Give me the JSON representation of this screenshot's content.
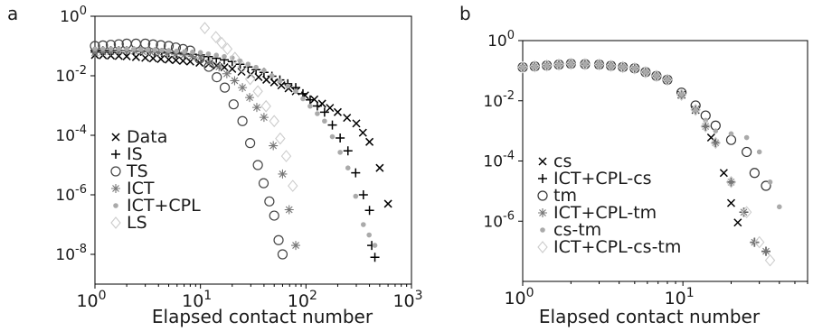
{
  "chart_data": [
    {
      "panel_label": "a",
      "type": "scatter",
      "title": "",
      "xlabel": "Elapsed contact number",
      "ylabel": "",
      "xscale": "log",
      "yscale": "log",
      "xlim": [
        1,
        1000
      ],
      "ylim": [
        1e-09,
        1
      ],
      "x_ticks": [
        {
          "base": "10",
          "exp": "0"
        },
        {
          "base": "10",
          "exp": "1"
        },
        {
          "base": "10",
          "exp": "2"
        },
        {
          "base": "10",
          "exp": "3"
        }
      ],
      "y_ticks": [
        {
          "base": "10",
          "exp": "0",
          "value": 1
        },
        {
          "base": "10",
          "exp": "-2",
          "value": 0.01
        },
        {
          "base": "10",
          "exp": "-4",
          "value": 0.0001
        },
        {
          "base": "10",
          "exp": "-6",
          "value": 1e-06
        },
        {
          "base": "10",
          "exp": "-8",
          "value": 1e-08
        }
      ],
      "legend_position": "left",
      "series": [
        {
          "name": "Data",
          "marker": "x",
          "color": "#000000",
          "x": [
            1,
            2,
            3,
            5,
            8,
            12,
            20,
            30,
            50,
            80,
            120,
            200,
            300,
            400,
            500,
            600
          ],
          "y": [
            0.05,
            0.045,
            0.04,
            0.035,
            0.03,
            0.025,
            0.017,
            0.011,
            0.006,
            0.003,
            0.0016,
            0.0006,
            0.00025,
            6e-05,
            8e-06,
            5e-07
          ]
        },
        {
          "name": "IS",
          "marker": "+",
          "color": "#000000",
          "x": [
            1,
            2,
            5,
            10,
            20,
            40,
            80,
            150,
            250,
            350,
            400,
            420,
            450
          ],
          "y": [
            0.07,
            0.07,
            0.06,
            0.05,
            0.03,
            0.013,
            0.004,
            0.0006,
            3e-05,
            1e-06,
            3e-07,
            2e-08,
            8e-09
          ]
        },
        {
          "name": "TS",
          "marker": "o",
          "color": "#444444",
          "x": [
            1,
            2,
            3,
            5,
            8,
            12,
            17,
            25,
            35,
            45,
            50,
            55,
            60
          ],
          "y": [
            0.1,
            0.12,
            0.12,
            0.1,
            0.07,
            0.02,
            0.004,
            0.0003,
            1e-05,
            6e-07,
            2e-07,
            3e-08,
            1e-08
          ]
        },
        {
          "name": "ICT",
          "marker": "*",
          "color": "#777777",
          "x": [
            1,
            2,
            4,
            7,
            10,
            15,
            25,
            40,
            60,
            80
          ],
          "y": [
            0.06,
            0.07,
            0.06,
            0.05,
            0.04,
            0.02,
            0.004,
            0.0004,
            5e-06,
            2e-08
          ]
        },
        {
          "name": "ICT+CPL",
          "marker": "dot",
          "color": "#aaaaaa",
          "x": [
            1,
            2,
            5,
            10,
            20,
            40,
            80,
            150,
            250,
            350,
            450
          ],
          "y": [
            0.08,
            0.08,
            0.07,
            0.06,
            0.04,
            0.015,
            0.003,
            0.0003,
            8e-06,
            1e-07,
            2e-08
          ]
        },
        {
          "name": "LS",
          "marker": "diamond",
          "color": "#cccccc",
          "x": [
            11,
            14,
            18,
            25,
            35,
            50,
            65,
            75
          ],
          "y": [
            0.4,
            0.2,
            0.08,
            0.02,
            0.003,
            0.0003,
            2e-05,
            2e-06
          ]
        }
      ]
    },
    {
      "panel_label": "b",
      "type": "scatter",
      "title": "",
      "xlabel": "Elapsed contact number",
      "ylabel": "",
      "xscale": "log",
      "yscale": "log",
      "xlim": [
        1,
        60
      ],
      "ylim": [
        1e-08,
        1
      ],
      "x_ticks": [
        {
          "base": "10",
          "exp": "0"
        },
        {
          "base": "10",
          "exp": "1"
        }
      ],
      "y_ticks": [
        {
          "base": "10",
          "exp": "0",
          "value": 1
        },
        {
          "base": "10",
          "exp": "-2",
          "value": 0.01
        },
        {
          "base": "10",
          "exp": "-4",
          "value": 0.0001
        },
        {
          "base": "10",
          "exp": "-6",
          "value": 1e-06
        }
      ],
      "legend_position": "lower-left",
      "series": [
        {
          "name": "cs",
          "marker": "x",
          "color": "#000000",
          "x": [
            1,
            2,
            3,
            5,
            8,
            12,
            15,
            18,
            20,
            22
          ],
          "y": [
            0.13,
            0.17,
            0.16,
            0.12,
            0.05,
            0.005,
            0.0006,
            4e-05,
            4e-06,
            9e-07
          ]
        },
        {
          "name": "ICT+CPL-cs",
          "marker": "+",
          "color": "#000000",
          "x": [
            1,
            2,
            3,
            5,
            8,
            12,
            16,
            20,
            24,
            28,
            33
          ],
          "y": [
            0.13,
            0.17,
            0.16,
            0.12,
            0.05,
            0.005,
            0.0004,
            2e-05,
            2e-06,
            2e-07,
            1e-07
          ]
        },
        {
          "name": "tm",
          "marker": "o",
          "color": "#333333",
          "x": [
            1,
            2,
            3,
            5,
            8,
            12,
            16,
            20,
            25,
            28,
            33
          ],
          "y": [
            0.13,
            0.17,
            0.16,
            0.12,
            0.05,
            0.007,
            0.0015,
            0.0005,
            0.0002,
            4e-05,
            1.5e-05
          ]
        },
        {
          "name": "ICT+CPL-tm",
          "marker": "*",
          "color": "#777777",
          "x": [
            1,
            2,
            3,
            5,
            8,
            12,
            16,
            20,
            24,
            28,
            33
          ],
          "y": [
            0.13,
            0.17,
            0.16,
            0.12,
            0.05,
            0.005,
            0.0004,
            2e-05,
            2e-06,
            2e-07,
            1e-07
          ]
        },
        {
          "name": "cs-tm",
          "marker": "dot",
          "color": "#aaaaaa",
          "x": [
            1,
            2,
            3,
            5,
            8,
            12,
            16,
            20,
            25,
            30,
            35,
            40
          ],
          "y": [
            0.13,
            0.17,
            0.16,
            0.12,
            0.05,
            0.005,
            0.001,
            0.0008,
            0.0006,
            0.0002,
            2e-05,
            3e-06
          ]
        },
        {
          "name": "ICT+CPL-cs-tm",
          "marker": "diamond",
          "color": "#cccccc",
          "x": [
            1,
            2,
            3,
            5,
            8,
            12,
            16,
            20,
            25,
            30,
            35
          ],
          "y": [
            0.13,
            0.17,
            0.16,
            0.12,
            0.05,
            0.005,
            0.0004,
            2e-05,
            2e-06,
            2e-07,
            5e-08
          ]
        }
      ]
    }
  ]
}
